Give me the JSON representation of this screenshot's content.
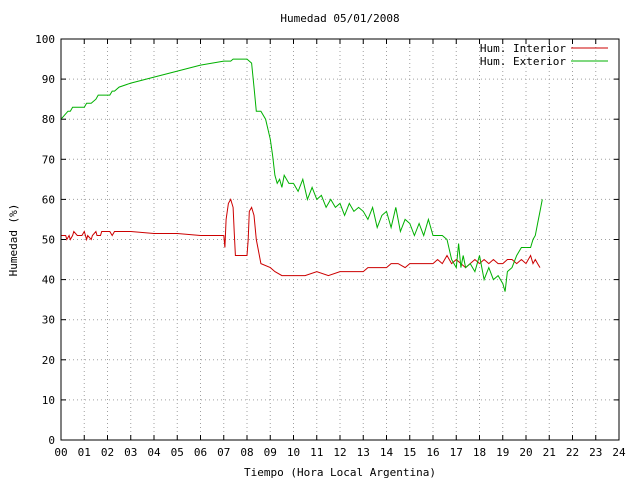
{
  "chart_data": {
    "type": "line",
    "title": "Humedad 05/01/2008",
    "xlabel": "Tiempo (Hora Local Argentina)",
    "ylabel": "Humedad (%)",
    "xlim": [
      0,
      24
    ],
    "ylim": [
      0,
      100
    ],
    "x_ticks": [
      0,
      1,
      2,
      3,
      4,
      5,
      6,
      7,
      8,
      9,
      10,
      11,
      12,
      13,
      14,
      15,
      16,
      17,
      18,
      19,
      20,
      21,
      22,
      23,
      24
    ],
    "x_tick_labels": [
      "00",
      "01",
      "02",
      "03",
      "04",
      "05",
      "06",
      "07",
      "08",
      "09",
      "10",
      "11",
      "12",
      "13",
      "14",
      "15",
      "16",
      "17",
      "18",
      "19",
      "20",
      "21",
      "22",
      "23",
      "24"
    ],
    "y_ticks": [
      0,
      10,
      20,
      30,
      40,
      50,
      60,
      70,
      80,
      90,
      100
    ],
    "grid": true,
    "legend_position": "top-right",
    "series": [
      {
        "name": "Hum. Interior",
        "color": "#cc0000",
        "x": [
          0,
          0.2,
          0.25,
          0.35,
          0.4,
          0.5,
          0.55,
          0.7,
          0.75,
          0.9,
          1.0,
          1.1,
          1.15,
          1.3,
          1.35,
          1.5,
          1.55,
          1.7,
          1.75,
          2.0,
          2.1,
          2.2,
          2.3,
          2.5,
          3.0,
          4.0,
          5.0,
          6.0,
          7.0,
          7.05,
          7.1,
          7.2,
          7.3,
          7.4,
          7.45,
          7.5,
          7.6,
          8.0,
          8.05,
          8.1,
          8.2,
          8.3,
          8.4,
          8.5,
          8.6,
          9.0,
          9.2,
          9.5,
          9.8,
          10.0,
          10.5,
          11.0,
          11.5,
          12.0,
          12.5,
          13.0,
          13.2,
          13.5,
          14.0,
          14.2,
          14.5,
          14.8,
          15.0,
          15.5,
          15.8,
          16.0,
          16.2,
          16.4,
          16.6,
          16.8,
          17.0,
          17.2,
          17.4,
          17.6,
          17.8,
          18.0,
          18.2,
          18.4,
          18.6,
          18.8,
          19.0,
          19.2,
          19.4,
          19.6,
          19.8,
          20.0,
          20.1,
          20.2,
          20.3,
          20.4,
          20.5,
          20.6
        ],
        "y": [
          51,
          51,
          50,
          51,
          50,
          51,
          52,
          51,
          51,
          51,
          52,
          50,
          51,
          50,
          51,
          52,
          51,
          51,
          52,
          52,
          52,
          51,
          52,
          52,
          52,
          51.5,
          51.5,
          51,
          51,
          48,
          55,
          59,
          60,
          58,
          52,
          46,
          46,
          46,
          50,
          57,
          58,
          56,
          50,
          47,
          44,
          43,
          42,
          41,
          41,
          41,
          41,
          42,
          41,
          42,
          42,
          42,
          43,
          43,
          43,
          44,
          44,
          43,
          44,
          44,
          44,
          44,
          45,
          44,
          46,
          44,
          45,
          44,
          43,
          44,
          45,
          44,
          45,
          44,
          45,
          44,
          44,
          45,
          45,
          44,
          45,
          44,
          45,
          46,
          44,
          45,
          44,
          43
        ]
      },
      {
        "name": "Hum. Exterior",
        "color": "#00b000",
        "x": [
          0,
          0.15,
          0.3,
          0.4,
          0.5,
          0.6,
          0.8,
          1.0,
          1.1,
          1.3,
          1.5,
          1.6,
          1.8,
          2.0,
          2.1,
          2.2,
          2.3,
          2.5,
          3.0,
          4.0,
          5.0,
          6.0,
          7.0,
          7.3,
          7.4,
          7.6,
          8.0,
          8.2,
          8.3,
          8.4,
          8.6,
          8.8,
          9.0,
          9.1,
          9.2,
          9.3,
          9.4,
          9.5,
          9.6,
          9.8,
          10.0,
          10.2,
          10.4,
          10.6,
          10.8,
          11.0,
          11.2,
          11.4,
          11.6,
          11.8,
          12.0,
          12.2,
          12.4,
          12.6,
          12.8,
          13.0,
          13.2,
          13.4,
          13.6,
          13.8,
          14.0,
          14.2,
          14.4,
          14.6,
          14.8,
          15.0,
          15.2,
          15.4,
          15.6,
          15.8,
          16.0,
          16.2,
          16.4,
          16.6,
          16.8,
          17.0,
          17.1,
          17.2,
          17.3,
          17.4,
          17.6,
          17.8,
          18.0,
          18.2,
          18.4,
          18.6,
          18.8,
          19.0,
          19.1,
          19.2,
          19.4,
          19.6,
          19.8,
          20.0,
          20.2,
          20.3,
          20.4,
          20.5,
          20.6,
          20.7
        ],
        "y": [
          80,
          81,
          82,
          82,
          83,
          83,
          83,
          83,
          84,
          84,
          85,
          86,
          86,
          86,
          86,
          87,
          87,
          88,
          89,
          90.5,
          92,
          93.5,
          94.5,
          94.5,
          95,
          95,
          95,
          94,
          88,
          82,
          82,
          80,
          75,
          71,
          66,
          64,
          65,
          63,
          66,
          64,
          64,
          62,
          65,
          60,
          63,
          60,
          61,
          58,
          60,
          58,
          59,
          56,
          59,
          57,
          58,
          57,
          55,
          58,
          53,
          56,
          57,
          53,
          58,
          52,
          55,
          54,
          51,
          54,
          51,
          55,
          51,
          51,
          51,
          50,
          45,
          43,
          49,
          43,
          46,
          43,
          44,
          42,
          46,
          40,
          43,
          40,
          41,
          39,
          37,
          42,
          43,
          46,
          48,
          48,
          48,
          50,
          51,
          54,
          57,
          60
        ]
      }
    ]
  }
}
